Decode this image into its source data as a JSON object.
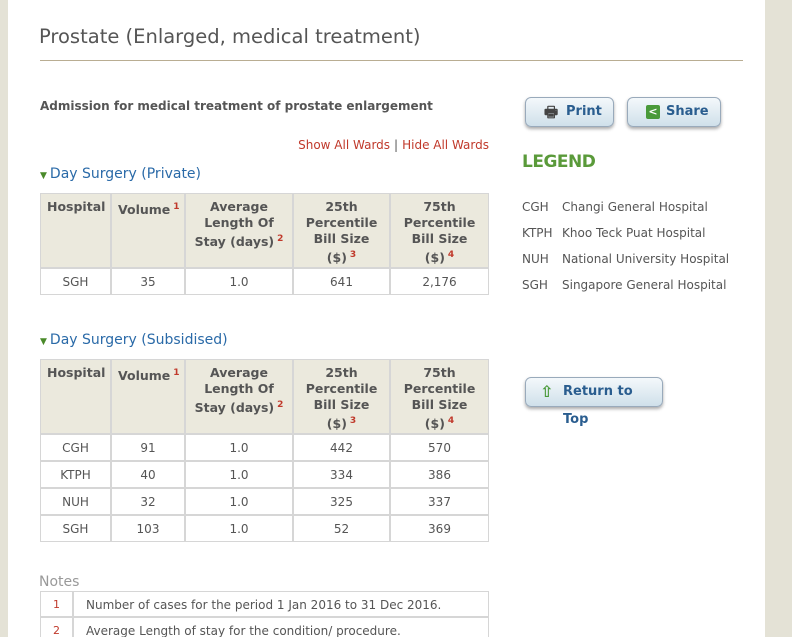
{
  "title": "Prostate (Enlarged, medical treatment)",
  "subtitle": "Admission for medical treatment of prostate enlargement",
  "ward_links": {
    "show": "Show All Wards",
    "separator": "|",
    "hide": "Hide All Wards"
  },
  "sections": [
    {
      "title": "Day Surgery (Private)",
      "headers": [
        {
          "label": "Hospital",
          "note": null
        },
        {
          "label": "Volume",
          "note": "1"
        },
        {
          "label": "Average Length Of Stay (days)",
          "note": "2"
        },
        {
          "label": "25th Percentile Bill Size ($)",
          "note": "3"
        },
        {
          "label": "75th Percentile Bill Size ($)",
          "note": "4"
        }
      ],
      "rows": [
        [
          "SGH",
          "35",
          "1.0",
          "641",
          "2,176"
        ]
      ]
    },
    {
      "title": "Day Surgery (Subsidised)",
      "headers": [
        {
          "label": "Hospital",
          "note": null
        },
        {
          "label": "Volume",
          "note": "1"
        },
        {
          "label": "Average Length Of Stay (days)",
          "note": "2"
        },
        {
          "label": "25th Percentile Bill Size ($)",
          "note": "3"
        },
        {
          "label": "75th Percentile Bill Size ($)",
          "note": "4"
        }
      ],
      "rows": [
        [
          "CGH",
          "91",
          "1.0",
          "442",
          "570"
        ],
        [
          "KTPH",
          "40",
          "1.0",
          "334",
          "386"
        ],
        [
          "NUH",
          "32",
          "1.0",
          "325",
          "337"
        ],
        [
          "SGH",
          "103",
          "1.0",
          "52",
          "369"
        ]
      ]
    }
  ],
  "notes": {
    "title": "Notes",
    "items": [
      {
        "number": "1",
        "text": "Number of cases for the period 1 Jan 2016 to 31 Dec 2016."
      },
      {
        "number": "2",
        "text": "Average Length of stay for the condition/ procedure."
      }
    ]
  },
  "buttons": {
    "print": "Print",
    "share": "Share",
    "top": "Return to Top"
  },
  "legend": {
    "title": "LEGEND",
    "items": [
      {
        "code": "CGH",
        "name": "Changi General Hospital"
      },
      {
        "code": "KTPH",
        "name": "Khoo Teck Puat Hospital"
      },
      {
        "code": "NUH",
        "name": "National University Hospital"
      },
      {
        "code": "SGH",
        "name": "Singapore General Hospital"
      }
    ]
  }
}
